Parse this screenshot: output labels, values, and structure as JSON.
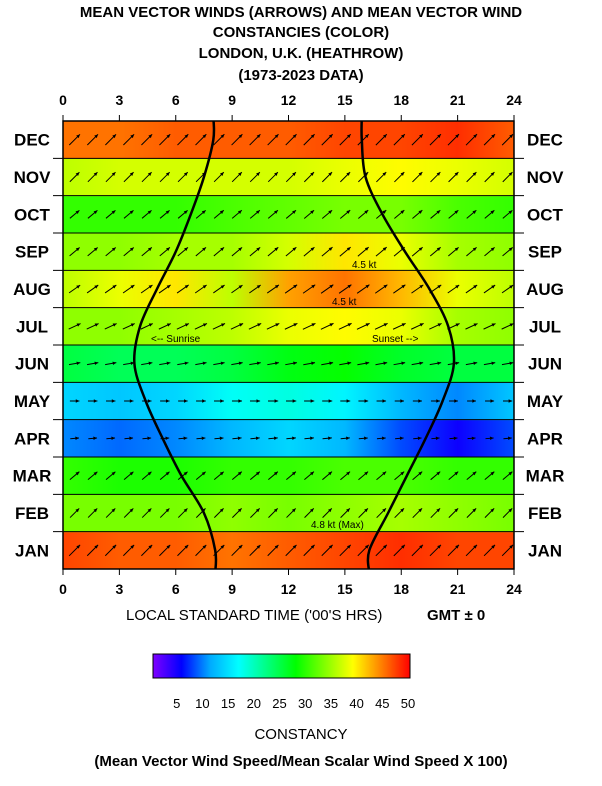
{
  "title": {
    "line1": "MEAN VECTOR WINDS (ARROWS) AND MEAN VECTOR WIND",
    "line2": "CONSTANCIES  (COLOR)",
    "line3": "LONDON, U.K. (HEATHROW)",
    "line4": "(1973-2023 DATA)"
  },
  "xlabel": "LOCAL STANDARD TIME ('00'S HRS)",
  "timezone": "GMT ± 0",
  "colorbar": {
    "title": "CONSTANCY",
    "subtitle": "(Mean Vector Wind Speed/Mean Scalar Wind Speed X 100)",
    "ticks": [
      "5",
      "10",
      "15",
      "20",
      "25",
      "30",
      "35",
      "40",
      "45",
      "50"
    ],
    "range": [
      0,
      50
    ],
    "colors": [
      "#7f00ff",
      "#0000ff",
      "#00aaff",
      "#00ffff",
      "#00ff80",
      "#00ff00",
      "#80ff00",
      "#ffff00",
      "#ff8000",
      "#ff0000"
    ]
  },
  "annotations": {
    "sunrise": "<-- Sunrise",
    "sunset": "Sunset -->",
    "label_sep": "4.5 kt",
    "label_aug": "4.5 kt",
    "label_jan": "4.8 kt (Max)"
  },
  "chart_data": {
    "type": "heatmap",
    "x_ticks": [
      "0",
      "3",
      "6",
      "9",
      "12",
      "15",
      "18",
      "21",
      "24"
    ],
    "x_range": [
      0,
      24
    ],
    "months": [
      "JAN",
      "FEB",
      "MAR",
      "APR",
      "MAY",
      "JUN",
      "JUL",
      "AUG",
      "SEP",
      "OCT",
      "NOV",
      "DEC"
    ],
    "constancy_hourly": {
      "hours": [
        0,
        3,
        6,
        9,
        12,
        15,
        18,
        21,
        24
      ],
      "JAN": [
        47,
        46,
        46,
        45,
        46,
        47,
        48,
        47,
        47
      ],
      "FEB": [
        33,
        33,
        33,
        34,
        33,
        34,
        35,
        34,
        33
      ],
      "MAR": [
        30,
        29,
        29,
        30,
        30,
        31,
        31,
        30,
        30
      ],
      "APR": [
        10,
        9,
        10,
        12,
        14,
        12,
        8,
        5,
        8
      ],
      "MAY": [
        14,
        13,
        14,
        17,
        18,
        16,
        12,
        10,
        13
      ],
      "JUN": [
        25,
        24,
        24,
        25,
        27,
        28,
        26,
        25,
        25
      ],
      "JUL": [
        34,
        34,
        35,
        36,
        38,
        39,
        38,
        35,
        34
      ],
      "AUG": [
        36,
        38,
        40,
        36,
        43,
        45,
        42,
        38,
        36
      ],
      "SEP": [
        34,
        34,
        35,
        35,
        37,
        40,
        38,
        35,
        34
      ],
      "OCT": [
        30,
        30,
        30,
        31,
        32,
        33,
        33,
        31,
        30
      ],
      "NOV": [
        36,
        37,
        37,
        37,
        37,
        38,
        39,
        38,
        37
      ],
      "DEC": [
        45,
        45,
        46,
        46,
        46,
        47,
        47,
        48,
        46
      ]
    },
    "wind_direction_from_deg": {
      "JAN": 225,
      "FEB": 225,
      "MAR": 230,
      "APR": 265,
      "MAY": 270,
      "JUN": 260,
      "JUL": 245,
      "AUG": 235,
      "SEP": 230,
      "OCT": 230,
      "NOV": 225,
      "DEC": 225
    },
    "sunrise_hours": {
      "JAN": 8.1,
      "FEB": 7.5,
      "MAR": 6.3,
      "APR": 5.3,
      "MAY": 4.4,
      "JUN": 3.8,
      "JUL": 4.1,
      "AUG": 5.0,
      "SEP": 6.0,
      "OCT": 6.8,
      "NOV": 7.5,
      "DEC": 8.0
    },
    "sunset_hours": {
      "JAN": 16.3,
      "FEB": 17.3,
      "MAR": 18.3,
      "APR": 19.3,
      "MAY": 20.2,
      "JUN": 20.8,
      "JUL": 20.5,
      "AUG": 19.5,
      "SEP": 18.2,
      "OCT": 17.0,
      "NOV": 16.1,
      "DEC": 15.9
    }
  }
}
